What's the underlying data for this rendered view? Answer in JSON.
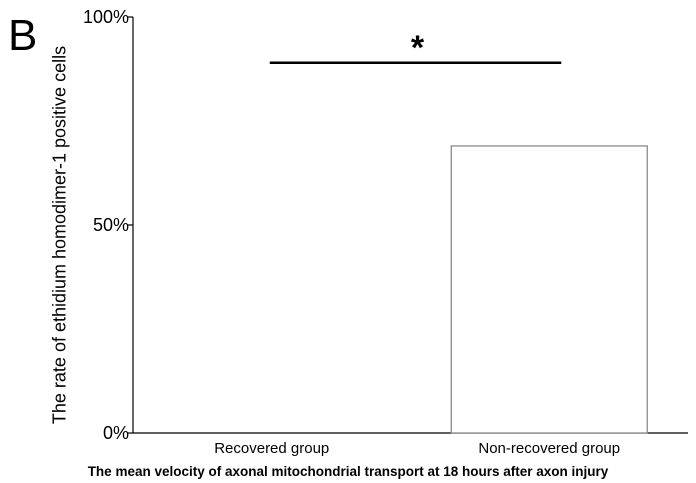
{
  "panel_label": "B",
  "chart_data": {
    "type": "bar",
    "categories": [
      "Recovered group",
      "Non-recovered group"
    ],
    "values": [
      0,
      69
    ],
    "ylabel": "The rate of ethidium homodimer-1 positive cells",
    "xlabel": "The mean velocity of axonal mitochondrial transport at 18 hours after axon injury",
    "ylim": [
      0,
      100
    ],
    "yticks": [
      0,
      50,
      100
    ],
    "ytick_labels": [
      "0%",
      "50%",
      "100%"
    ],
    "grid": false,
    "significance": {
      "between": [
        0,
        1
      ],
      "value": 89,
      "label": "*"
    },
    "colors": {
      "bar_fill": "#ffffff",
      "bar_stroke": "#8a8a8a",
      "axis": "#000000"
    }
  }
}
